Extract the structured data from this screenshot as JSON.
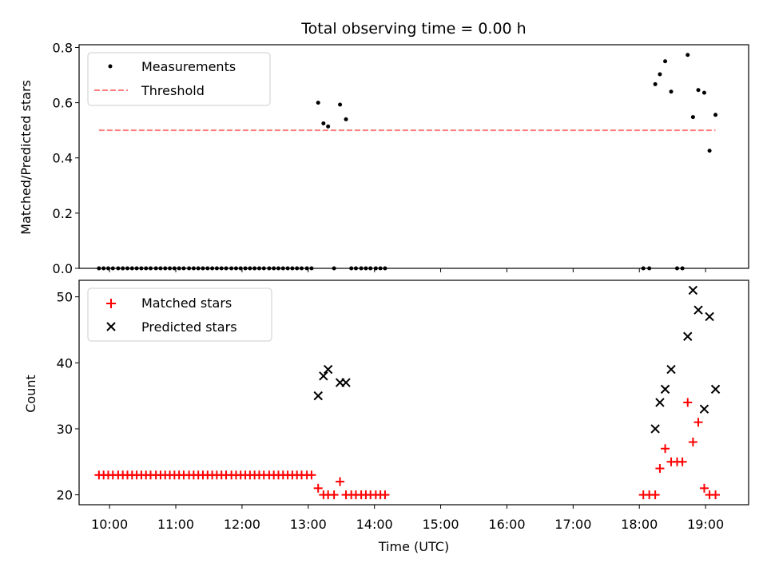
{
  "chart_data": {
    "title": "Total observing time = 0.00 h",
    "xlabel": "Time (UTC)",
    "x_tick_labels": [
      "10:00",
      "11:00",
      "12:00",
      "13:00",
      "14:00",
      "15:00",
      "16:00",
      "17:00",
      "18:00",
      "19:00"
    ],
    "x_tick_values": [
      10,
      11,
      12,
      13,
      14,
      15,
      16,
      17,
      18,
      19
    ],
    "xlim": [
      9.54,
      19.65
    ],
    "panels": [
      {
        "type": "scatter",
        "ylabel": "Matched/Predicted stars",
        "ylim": [
          0,
          0.81
        ],
        "y_ticks": [
          0.0,
          0.2,
          0.4,
          0.6,
          0.8
        ],
        "y_tick_labels": [
          "0.0",
          "0.2",
          "0.4",
          "0.6",
          "0.8"
        ],
        "legend": {
          "position": "upper-left",
          "entries": [
            "Measurements",
            "Threshold"
          ]
        },
        "threshold": {
          "name": "Threshold",
          "y": 0.5,
          "x_range": [
            9.84,
            19.15
          ],
          "color": "#ff7f7f",
          "style": "dashed"
        },
        "series": [
          {
            "name": "Measurements",
            "marker": "dot",
            "color": "#000000",
            "points": [
              [
                9.84,
                0
              ],
              [
                9.91,
                0
              ],
              [
                9.98,
                0
              ],
              [
                10.05,
                0
              ],
              [
                10.13,
                0
              ],
              [
                10.2,
                0
              ],
              [
                10.27,
                0
              ],
              [
                10.34,
                0
              ],
              [
                10.41,
                0
              ],
              [
                10.48,
                0
              ],
              [
                10.55,
                0
              ],
              [
                10.62,
                0
              ],
              [
                10.7,
                0
              ],
              [
                10.77,
                0
              ],
              [
                10.84,
                0
              ],
              [
                10.91,
                0
              ],
              [
                10.98,
                0
              ],
              [
                11.05,
                0
              ],
              [
                11.12,
                0
              ],
              [
                11.2,
                0
              ],
              [
                11.27,
                0
              ],
              [
                11.34,
                0
              ],
              [
                11.41,
                0
              ],
              [
                11.48,
                0
              ],
              [
                11.55,
                0
              ],
              [
                11.62,
                0
              ],
              [
                11.69,
                0
              ],
              [
                11.76,
                0
              ],
              [
                11.84,
                0
              ],
              [
                11.91,
                0
              ],
              [
                11.98,
                0
              ],
              [
                12.05,
                0
              ],
              [
                12.12,
                0
              ],
              [
                12.19,
                0
              ],
              [
                12.26,
                0
              ],
              [
                12.33,
                0
              ],
              [
                12.41,
                0
              ],
              [
                12.48,
                0
              ],
              [
                12.55,
                0
              ],
              [
                12.62,
                0
              ],
              [
                12.69,
                0
              ],
              [
                12.76,
                0
              ],
              [
                12.83,
                0
              ],
              [
                12.9,
                0
              ],
              [
                12.98,
                0
              ],
              [
                13.05,
                0
              ],
              [
                13.15,
                0.6
              ],
              [
                13.23,
                0.525
              ],
              [
                13.3,
                0.514
              ],
              [
                13.39,
                0
              ],
              [
                13.48,
                0.593
              ],
              [
                13.57,
                0.54
              ],
              [
                13.65,
                0
              ],
              [
                13.72,
                0
              ],
              [
                13.8,
                0
              ],
              [
                13.87,
                0
              ],
              [
                13.94,
                0
              ],
              [
                14.02,
                0
              ],
              [
                14.09,
                0
              ],
              [
                14.16,
                0
              ],
              [
                18.06,
                0
              ],
              [
                18.15,
                0
              ],
              [
                18.24,
                0.667
              ],
              [
                18.31,
                0.703
              ],
              [
                18.39,
                0.75
              ],
              [
                18.48,
                0.64
              ],
              [
                18.57,
                0
              ],
              [
                18.65,
                0
              ],
              [
                18.73,
                0.773
              ],
              [
                18.81,
                0.548
              ],
              [
                18.89,
                0.646
              ],
              [
                18.98,
                0.636
              ],
              [
                19.06,
                0.426
              ],
              [
                19.15,
                0.556
              ]
            ]
          }
        ]
      },
      {
        "type": "scatter",
        "ylabel": "Count",
        "ylim": [
          18.5,
          52.5
        ],
        "y_ticks": [
          20,
          30,
          40,
          50
        ],
        "y_tick_labels": [
          "20",
          "30",
          "40",
          "50"
        ],
        "legend": {
          "position": "upper-left",
          "entries": [
            "Matched stars",
            "Predicted stars"
          ]
        },
        "series": [
          {
            "name": "Matched stars",
            "marker": "plus",
            "color": "#ff0000",
            "points": [
              [
                9.84,
                23
              ],
              [
                9.91,
                23
              ],
              [
                9.98,
                23
              ],
              [
                10.05,
                23
              ],
              [
                10.13,
                23
              ],
              [
                10.2,
                23
              ],
              [
                10.27,
                23
              ],
              [
                10.34,
                23
              ],
              [
                10.41,
                23
              ],
              [
                10.48,
                23
              ],
              [
                10.55,
                23
              ],
              [
                10.62,
                23
              ],
              [
                10.7,
                23
              ],
              [
                10.77,
                23
              ],
              [
                10.84,
                23
              ],
              [
                10.91,
                23
              ],
              [
                10.98,
                23
              ],
              [
                11.05,
                23
              ],
              [
                11.12,
                23
              ],
              [
                11.2,
                23
              ],
              [
                11.27,
                23
              ],
              [
                11.34,
                23
              ],
              [
                11.41,
                23
              ],
              [
                11.48,
                23
              ],
              [
                11.55,
                23
              ],
              [
                11.62,
                23
              ],
              [
                11.69,
                23
              ],
              [
                11.76,
                23
              ],
              [
                11.84,
                23
              ],
              [
                11.91,
                23
              ],
              [
                11.98,
                23
              ],
              [
                12.05,
                23
              ],
              [
                12.12,
                23
              ],
              [
                12.19,
                23
              ],
              [
                12.26,
                23
              ],
              [
                12.33,
                23
              ],
              [
                12.41,
                23
              ],
              [
                12.48,
                23
              ],
              [
                12.55,
                23
              ],
              [
                12.62,
                23
              ],
              [
                12.69,
                23
              ],
              [
                12.76,
                23
              ],
              [
                12.83,
                23
              ],
              [
                12.9,
                23
              ],
              [
                12.98,
                23
              ],
              [
                13.05,
                23
              ],
              [
                13.15,
                21
              ],
              [
                13.23,
                20
              ],
              [
                13.3,
                20
              ],
              [
                13.39,
                20
              ],
              [
                13.48,
                22
              ],
              [
                13.57,
                20
              ],
              [
                13.65,
                20
              ],
              [
                13.72,
                20
              ],
              [
                13.8,
                20
              ],
              [
                13.87,
                20
              ],
              [
                13.94,
                20
              ],
              [
                14.02,
                20
              ],
              [
                14.09,
                20
              ],
              [
                14.16,
                20
              ],
              [
                18.06,
                20
              ],
              [
                18.15,
                20
              ],
              [
                18.24,
                20
              ],
              [
                18.31,
                24
              ],
              [
                18.39,
                27
              ],
              [
                18.48,
                25
              ],
              [
                18.57,
                25
              ],
              [
                18.65,
                25
              ],
              [
                18.73,
                34
              ],
              [
                18.81,
                28
              ],
              [
                18.89,
                31
              ],
              [
                18.98,
                21
              ],
              [
                19.06,
                20
              ],
              [
                19.15,
                20
              ]
            ]
          },
          {
            "name": "Predicted stars",
            "marker": "x",
            "color": "#000000",
            "points": [
              [
                13.15,
                35
              ],
              [
                13.23,
                38
              ],
              [
                13.3,
                39
              ],
              [
                13.48,
                37
              ],
              [
                13.57,
                37
              ],
              [
                18.24,
                30
              ],
              [
                18.31,
                34
              ],
              [
                18.39,
                36
              ],
              [
                18.48,
                39
              ],
              [
                18.73,
                44
              ],
              [
                18.81,
                51
              ],
              [
                18.89,
                48
              ],
              [
                18.98,
                33
              ],
              [
                19.06,
                47
              ],
              [
                19.15,
                36
              ]
            ]
          }
        ]
      }
    ]
  }
}
